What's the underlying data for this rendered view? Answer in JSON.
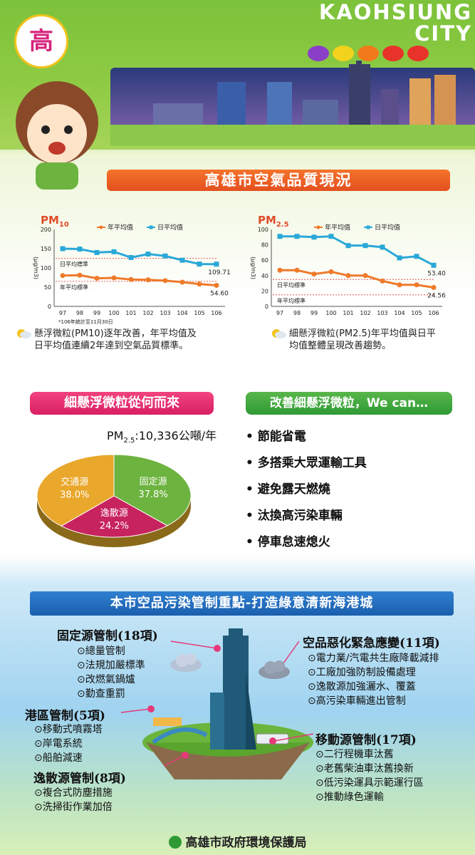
{
  "header": {
    "line1": "KAOHSIUNG",
    "line2": "CITY",
    "dots": [
      "#8a3fc6",
      "#f2d21c",
      "#f07a1c",
      "#e8332a",
      "#e8332a"
    ]
  },
  "title_banner": "高雄市空氣品質現況",
  "charts": {
    "pm10": {
      "label_main": "PM",
      "label_sub": "10",
      "legend_annual": "年平均值",
      "legend_daily": "日平均值",
      "ylabel": "(μg/m3)",
      "std_daily": "日平均標準",
      "std_annual": "年平均標準",
      "footnote": "*106年統計至11月30日",
      "end_daily": "109.71",
      "end_annual": "54.60"
    },
    "pm25": {
      "label_main": "PM",
      "label_sub": "2.5",
      "legend_annual": "年平均值",
      "legend_daily": "日平均值",
      "ylabel": "(μg/m3)",
      "std_daily": "日平均標準",
      "std_annual": "年平均標準",
      "end_daily": "53.40",
      "end_annual": "24.56"
    }
  },
  "chart_data": [
    {
      "type": "line",
      "title": "PM10",
      "x": [
        "97",
        "98",
        "99",
        "100",
        "101",
        "102",
        "103",
        "104",
        "105",
        "106"
      ],
      "ylim": [
        0,
        200
      ],
      "yticks": [
        0,
        50,
        100,
        150,
        200
      ],
      "series": [
        {
          "name": "年平均值",
          "color": "#ee7a2a",
          "values": [
            80,
            81,
            73,
            74,
            70,
            69,
            67,
            63,
            58,
            54.6
          ]
        },
        {
          "name": "日平均值",
          "color": "#2aa8d8",
          "values": [
            150,
            149,
            140,
            142,
            127,
            136,
            131,
            120,
            110,
            109.71
          ]
        }
      ],
      "standards": {
        "daily": 125,
        "annual": 65
      }
    },
    {
      "type": "line",
      "title": "PM2.5",
      "x": [
        "97",
        "98",
        "99",
        "100",
        "101",
        "102",
        "103",
        "104",
        "105",
        "106"
      ],
      "ylim": [
        0,
        100
      ],
      "yticks": [
        0,
        20,
        40,
        60,
        80,
        100
      ],
      "series": [
        {
          "name": "年平均值",
          "color": "#ee7a2a",
          "values": [
            47,
            47,
            42,
            45,
            40,
            40,
            33,
            28,
            28,
            24.56
          ]
        },
        {
          "name": "日平均值",
          "color": "#2aa8d8",
          "values": [
            91,
            91,
            90,
            91,
            79,
            79,
            77,
            63,
            65,
            53.4
          ]
        }
      ],
      "standards": {
        "daily": 35,
        "annual": 15
      }
    },
    {
      "type": "pie",
      "title": "PM2.5:10,336公噸/年",
      "slices": [
        {
          "label": "固定源",
          "value": 37.8,
          "display": "37.8%",
          "color": "#6db33f"
        },
        {
          "label": "逸散源",
          "value": 24.2,
          "display": "24.2%",
          "color": "#c7235f"
        },
        {
          "label": "交通源",
          "value": 38.0,
          "display": "38.0%",
          "color": "#e9a72b"
        }
      ]
    }
  ],
  "notes": {
    "pm10": [
      "懸浮微粒(PM10)逐年改善，年平均值及",
      "日平均值連續2年達到空氣品質標準。"
    ],
    "pm25": [
      "細懸浮微粒(PM2.5)年平均值與日平",
      "均值整體呈現改善趨勢。"
    ]
  },
  "source_banner": "細懸浮微粒從何而來",
  "improve_banner": "改善細懸浮微粒，We can…",
  "pie_title_main": "PM",
  "pie_title_sub": "2.5",
  "pie_title_rest": ":10,336公噸/年",
  "improve_list": [
    "節能省電",
    "多搭乘大眾運輸工具",
    "避免露天燃燒",
    "汰換高污染車輛",
    "停車怠速熄火"
  ],
  "control_banner": "本市空品污染管制重點-打造綠意清新海港城",
  "controls": {
    "fixed": {
      "title": "固定源管制(18項)",
      "items": [
        "⊙總量管制",
        "⊙法規加嚴標準",
        "⊙改燃氣鍋爐",
        "⊙勤查重罰"
      ]
    },
    "port": {
      "title": "港區管制(5項)",
      "items": [
        "⊙移動式噴霧塔",
        "⊙岸電系統",
        "⊙船舶減速"
      ]
    },
    "fugitive": {
      "title": "逸散源管制(8項)",
      "items": [
        "⊙複合式防塵措施",
        "⊙洗掃街作業加倍"
      ]
    },
    "emergency": {
      "title": "空品惡化緊急應變(11項)",
      "items": [
        "⊙電力業/汽電共生廠降載減排",
        "⊙工廠加強防制設備處理",
        "⊙逸散源加強灑水、覆蓋",
        "⊙高污染車輛進出管制"
      ]
    },
    "mobile": {
      "title": "移動源管制(17項)",
      "items": [
        "⊙二行程機車汰舊",
        "⊙老舊柴油車汰舊換新",
        "⊙低污染運具示範運行區",
        "⊙推動綠色運輸"
      ]
    }
  },
  "footer": "高雄市政府環境保護局"
}
